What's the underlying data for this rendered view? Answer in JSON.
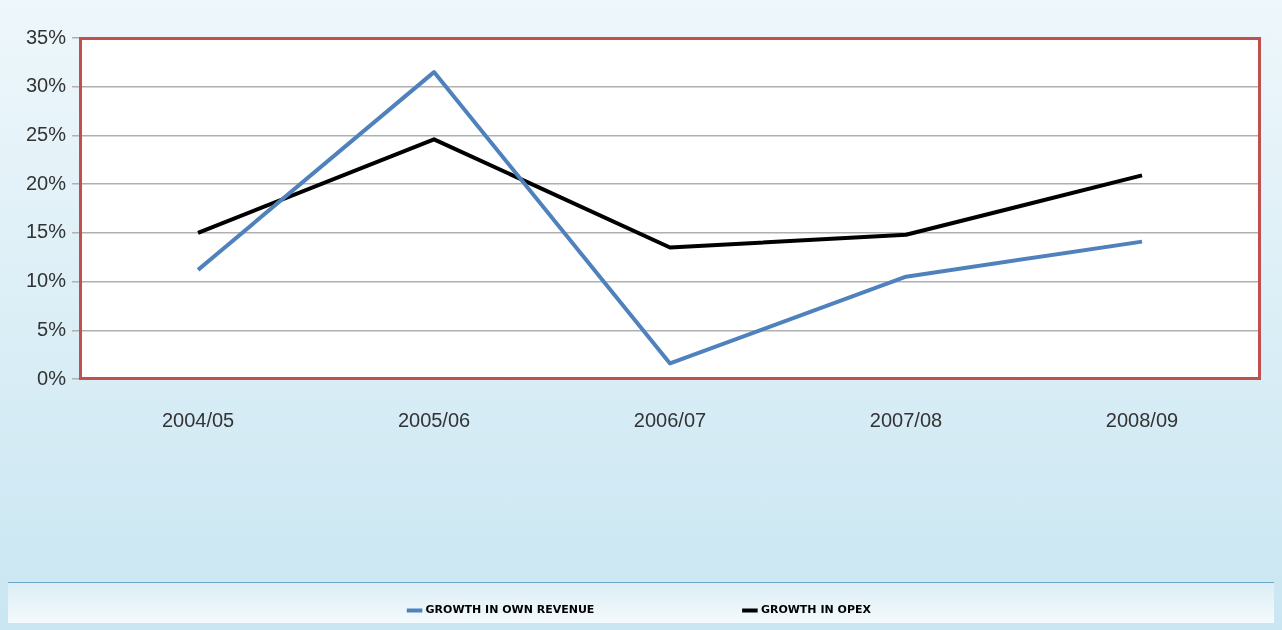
{
  "chart_data": {
    "type": "line",
    "categories": [
      "2004/05",
      "2005/06",
      "2006/07",
      "2007/08",
      "2008/09"
    ],
    "series": [
      {
        "name": "GROWTH IN OWN REVENUE",
        "color": "#4f81bd",
        "values": [
          11.2,
          31.5,
          1.6,
          10.5,
          14.1
        ]
      },
      {
        "name": "GROWTH IN OPEX",
        "color": "#000000",
        "values": [
          15.0,
          24.6,
          13.5,
          14.8,
          20.9
        ]
      }
    ],
    "ylim": [
      0,
      35
    ],
    "yticks": [
      {
        "value": 0,
        "label": "0%"
      },
      {
        "value": 5,
        "label": "5%"
      },
      {
        "value": 10,
        "label": "10%"
      },
      {
        "value": 15,
        "label": "15%"
      },
      {
        "value": 20,
        "label": "20%"
      },
      {
        "value": 25,
        "label": "25%"
      },
      {
        "value": 30,
        "label": "30%"
      },
      {
        "value": 35,
        "label": "35%"
      }
    ],
    "grid": "y",
    "legend": "bottom",
    "marker": "none"
  }
}
